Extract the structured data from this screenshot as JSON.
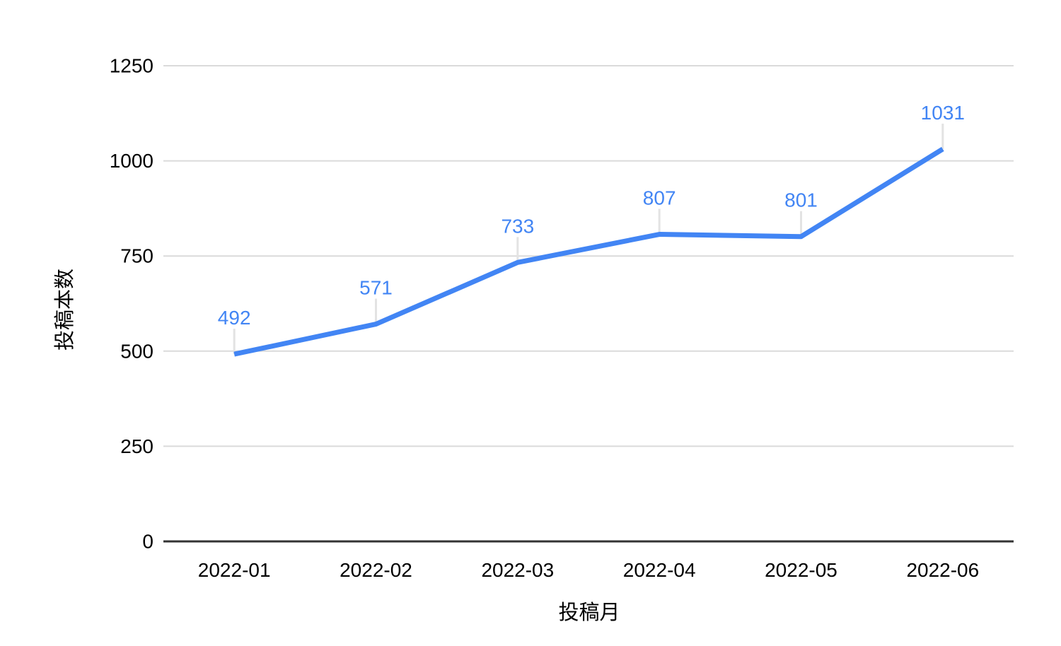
{
  "chart_data": {
    "type": "line",
    "categories": [
      "2022-01",
      "2022-02",
      "2022-03",
      "2022-04",
      "2022-05",
      "2022-06"
    ],
    "series": [
      {
        "name": "投稿本数",
        "values": [
          492,
          571,
          733,
          807,
          801,
          1031
        ]
      }
    ],
    "xlabel": "投稿月",
    "ylabel": "投稿本数",
    "ylim": [
      0,
      1250
    ],
    "yticks": [
      0,
      250,
      500,
      750,
      1000,
      1250
    ],
    "grid": true,
    "legend_position": "none",
    "data_labels_visible": true,
    "colors": {
      "series_line": "#4285f4",
      "data_label": "#4285f4",
      "gridline": "#dadada",
      "leader_line": "#e3e3e3",
      "axis_baseline": "#333333",
      "tick_label": "#000000",
      "axis_title": "#000000",
      "background": "#ffffff"
    }
  }
}
